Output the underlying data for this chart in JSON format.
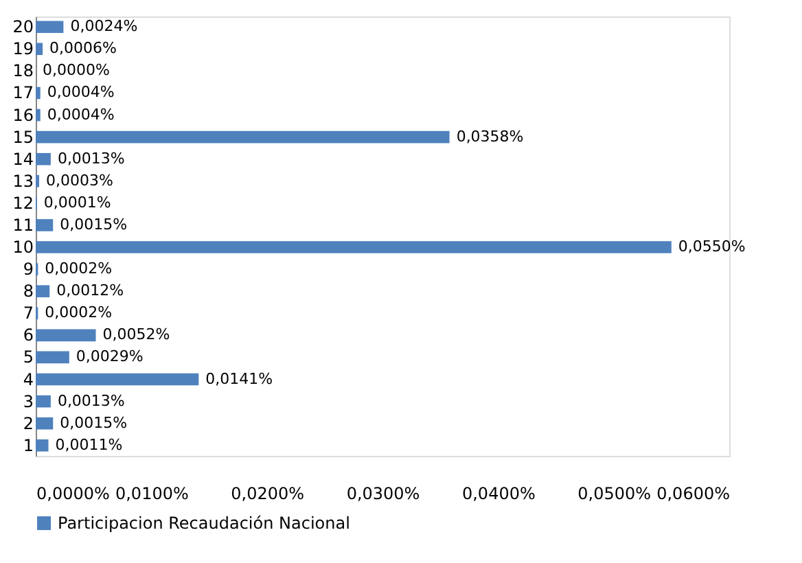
{
  "chart_data": {
    "type": "bar",
    "orientation": "horizontal",
    "categories": [
      "20",
      "19",
      "18",
      "17",
      "16",
      "15",
      "14",
      "13",
      "12",
      "11",
      "10",
      "9",
      "8",
      "7",
      "6",
      "5",
      "4",
      "3",
      "2",
      "1"
    ],
    "series": [
      {
        "name": "Participacion Recaudación Nacional",
        "color": "#4f81bd",
        "values": [
          0.0024,
          0.0006,
          0.0,
          0.0004,
          0.0004,
          0.0358,
          0.0013,
          0.0003,
          0.0001,
          0.0015,
          0.055,
          0.0002,
          0.0012,
          0.0002,
          0.0052,
          0.0029,
          0.0141,
          0.0013,
          0.0015,
          0.0011
        ],
        "value_labels": [
          "0,0024%",
          "0,0006%",
          "0,0000%",
          "0,0004%",
          "0,0004%",
          "0,0358%",
          "0,0013%",
          "0,0003%",
          "0,0001%",
          "0,0015%",
          "0,0550%",
          "0,0002%",
          "0,0012%",
          "0,0002%",
          "0,0052%",
          "0,0029%",
          "0,0141%",
          "0,0013%",
          "0,0015%",
          "0,0011%"
        ]
      }
    ],
    "xlim": [
      0,
      0.06
    ],
    "xticks": [
      {
        "value": 0,
        "label": "0,0000%"
      },
      {
        "value": 0.01,
        "label": "0,0100%"
      },
      {
        "value": 0.02,
        "label": "0,0200%"
      },
      {
        "value": 0.03,
        "label": "0,0300%"
      },
      {
        "value": 0.04,
        "label": "0,0400%"
      },
      {
        "value": 0.05,
        "label": "0,0500%"
      },
      {
        "value": 0.06,
        "label": "0,0600%"
      }
    ],
    "grid": false,
    "legend": "bottom"
  }
}
